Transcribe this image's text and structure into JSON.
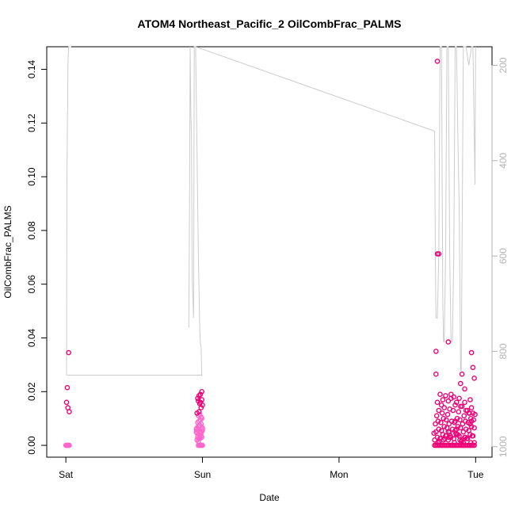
{
  "chart_data": {
    "type": "scatter",
    "title": "ATOM4 Northeast_Pacific_2 OilCombFrac_PALMS",
    "xlabel": "Date",
    "ylabel": "OilCombFrac_PALMS",
    "x_ticks": [
      {
        "day": 0,
        "label": "Sat"
      },
      {
        "day": 1,
        "label": "Sun"
      },
      {
        "day": 2,
        "label": "Mon"
      },
      {
        "day": 3,
        "label": "Tue"
      }
    ],
    "y_ticks": [
      0.0,
      0.02,
      0.04,
      0.06,
      0.08,
      0.1,
      0.12,
      0.14
    ],
    "y_tick_labels": [
      "0.00",
      "0.02",
      "0.04",
      "0.06",
      "0.08",
      "0.10",
      "0.12",
      "0.14"
    ],
    "ylim": [
      -0.0044,
      0.1484
    ],
    "xlim_days": [
      -0.14,
      3.12
    ],
    "right_axis": {
      "label": "",
      "ticks": [
        200,
        400,
        600,
        800,
        1000
      ],
      "tick_labels": [
        "200",
        "400",
        "600",
        "800",
        "1000"
      ],
      "lim_top_to_bottom": [
        161,
        1022
      ],
      "color": "#b3b3b3"
    },
    "colors": {
      "points": "#ee0077",
      "points_light": "#ff66cc",
      "altitude_line": "#cccccc",
      "axis": "#000000"
    },
    "series": [
      {
        "kind": "points",
        "x_day": [
          0.0,
          0.005,
          0.01,
          0.015,
          0.02,
          0.025,
          0.01,
          0.005,
          0.015,
          0.025,
          0.02,
          0.97,
          0.975,
          0.98,
          0.985,
          0.99,
          0.995,
          1.0,
          0.96,
          0.965,
          0.97,
          0.975,
          0.98,
          0.985,
          0.99,
          0.995,
          1.0,
          0.955,
          0.96,
          0.97,
          0.98,
          0.99,
          1.0,
          0.965,
          0.975,
          0.985,
          0.995,
          0.97,
          0.98,
          0.99,
          0.96,
          0.975,
          0.99,
          1.0,
          0.985,
          0.97,
          0.98,
          0.995,
          0.965,
          0.975,
          0.985,
          0.995,
          0.96,
          0.97,
          0.98,
          0.99,
          1.0,
          0.955,
          0.965,
          0.975,
          2.7,
          2.71,
          2.72,
          2.73,
          2.74,
          2.75,
          2.76,
          2.77,
          2.78,
          2.79,
          2.8,
          2.81,
          2.82,
          2.83,
          2.84,
          2.85,
          2.86,
          2.87,
          2.88,
          2.89,
          2.9,
          2.91,
          2.92,
          2.93,
          2.94,
          2.95,
          2.96,
          2.97,
          2.98,
          2.99,
          2.7,
          2.72,
          2.74,
          2.76,
          2.78,
          2.8,
          2.82,
          2.84,
          2.86,
          2.88,
          2.9,
          2.92,
          2.94,
          2.96,
          2.98,
          2.71,
          2.73,
          2.75,
          2.77,
          2.79,
          2.81,
          2.83,
          2.85,
          2.87,
          2.89,
          2.91,
          2.93,
          2.95,
          2.97,
          2.99,
          2.705,
          2.725,
          2.745,
          2.765,
          2.785,
          2.805,
          2.825,
          2.845,
          2.865,
          2.885,
          2.905,
          2.925,
          2.945,
          2.965,
          2.985,
          2.715,
          2.755,
          2.795,
          2.835,
          2.875,
          2.915,
          2.955,
          2.995,
          2.73,
          2.77,
          2.81,
          2.85,
          2.89,
          2.93,
          2.97,
          2.72,
          2.76,
          2.8,
          2.84,
          2.88,
          2.92,
          2.96,
          2.74,
          2.78,
          2.82,
          2.86,
          2.9,
          2.94,
          2.98,
          2.695,
          2.735,
          2.775,
          2.815,
          2.855,
          2.895,
          2.935,
          2.975,
          2.725,
          2.765,
          2.805,
          2.845,
          2.885,
          2.925,
          2.965,
          2.71,
          2.8,
          2.9,
          2.89,
          2.97,
          2.98,
          2.99,
          2.92,
          2.71,
          2.72,
          2.73,
          2.72,
          2.75,
          2.8,
          2.85,
          2.91,
          2.96,
          2.99,
          2.82,
          2.86,
          2.95,
          2.97,
          2.87
        ],
        "y": [
          0.0,
          0.0,
          0.0,
          0.0,
          0.0,
          0.0,
          0.0215,
          0.016,
          0.014,
          0.0125,
          0.0345,
          0.0,
          0.0,
          0.0,
          0.0,
          0.0,
          0.0,
          0.0,
          0.002,
          0.003,
          0.0025,
          0.004,
          0.0035,
          0.005,
          0.0045,
          0.003,
          0.0055,
          0.006,
          0.0065,
          0.007,
          0.0075,
          0.008,
          0.006,
          0.0085,
          0.009,
          0.0095,
          0.01,
          0.011,
          0.0115,
          0.0105,
          0.012,
          0.0125,
          0.014,
          0.015,
          0.016,
          0.0165,
          0.0155,
          0.017,
          0.0175,
          0.0185,
          0.019,
          0.02,
          0.0045,
          0.0015,
          0.0025,
          0.0035,
          0.0065,
          0.005,
          0.0055,
          0.0075,
          0.0,
          0.0,
          0.0,
          0.0,
          0.0,
          0.0,
          0.0,
          0.0,
          0.0,
          0.0,
          0.0,
          0.0,
          0.0,
          0.0,
          0.0,
          0.0,
          0.0,
          0.0,
          0.0,
          0.0,
          0.0,
          0.0,
          0.0,
          0.0,
          0.0,
          0.0,
          0.0,
          0.0,
          0.0,
          0.0,
          0.002,
          0.003,
          0.0025,
          0.004,
          0.0035,
          0.002,
          0.003,
          0.0025,
          0.004,
          0.0035,
          0.002,
          0.003,
          0.0025,
          0.004,
          0.0035,
          0.005,
          0.006,
          0.0055,
          0.007,
          0.0065,
          0.005,
          0.006,
          0.0055,
          0.007,
          0.0065,
          0.005,
          0.006,
          0.0055,
          0.007,
          0.0065,
          0.008,
          0.009,
          0.0085,
          0.01,
          0.0095,
          0.008,
          0.009,
          0.0085,
          0.01,
          0.0095,
          0.008,
          0.009,
          0.0085,
          0.01,
          0.0095,
          0.011,
          0.012,
          0.0115,
          0.013,
          0.0125,
          0.011,
          0.012,
          0.0115,
          0.013,
          0.014,
          0.0135,
          0.015,
          0.0145,
          0.013,
          0.014,
          0.016,
          0.017,
          0.0165,
          0.018,
          0.0175,
          0.016,
          0.017,
          0.019,
          0.0185,
          0.0175,
          0.016,
          0.0145,
          0.013,
          0.012,
          0.0045,
          0.0015,
          0.0025,
          0.0035,
          0.0045,
          0.0015,
          0.0025,
          0.0035,
          0.001,
          0.002,
          0.003,
          0.001,
          0.002,
          0.003,
          0.001,
          0.035,
          0.0385,
          0.0265,
          0.023,
          0.0345,
          0.029,
          0.025,
          0.021,
          0.0265,
          0.0713,
          0.0713,
          0.143,
          0.015,
          0.005,
          0.009,
          0.001,
          0.008,
          0.001,
          0.019,
          0.006,
          0.012,
          0.009,
          0.004
        ]
      },
      {
        "kind": "line",
        "name": "",
        "axis": "right",
        "segments": [
          [
            [
              0.005,
              850
            ],
            [
              0.006,
              660
            ],
            [
              0.008,
              440
            ],
            [
              0.012,
              300
            ],
            [
              0.013,
              290
            ],
            [
              0.015,
              200
            ],
            [
              0.02,
              161
            ],
            [
              0.04,
              161
            ]
          ],
          [
            [
              0.005,
              850
            ],
            [
              1.0,
              850
            ]
          ],
          [
            [
              0.9,
              750
            ],
            [
              0.905,
              500
            ],
            [
              0.91,
              161
            ],
            [
              0.915,
              300
            ],
            [
              0.92,
              350
            ],
            [
              0.925,
              650
            ],
            [
              0.935,
              730
            ],
            [
              0.94,
              161
            ],
            [
              0.95,
              161
            ],
            [
              0.97,
              600
            ],
            [
              0.98,
              750
            ],
            [
              0.985,
              785
            ],
            [
              0.99,
              790
            ],
            [
              0.995,
              850
            ]
          ],
          [
            [
              0.95,
              161
            ],
            [
              2.7,
              338
            ]
          ],
          [
            [
              2.7,
              338
            ],
            [
              2.705,
              610
            ],
            [
              2.71,
              730
            ],
            [
              2.72,
              730
            ],
            [
              2.73,
              600
            ],
            [
              2.74,
              161
            ],
            [
              2.75,
              161
            ],
            [
              2.76,
              700
            ],
            [
              2.765,
              780
            ],
            [
              2.77,
              780
            ],
            [
              2.78,
              600
            ],
            [
              2.79,
              161
            ],
            [
              2.8,
              161
            ],
            [
              2.81,
              600
            ],
            [
              2.82,
              780
            ],
            [
              2.83,
              780
            ],
            [
              2.84,
              600
            ],
            [
              2.85,
              161
            ],
            [
              2.86,
              161
            ],
            [
              2.87,
              350
            ],
            [
              2.88,
              500
            ],
            [
              2.89,
              840
            ],
            [
              2.895,
              840
            ],
            [
              2.9,
              600
            ],
            [
              2.91,
              161
            ],
            [
              2.93,
              161
            ],
            [
              2.95,
              200
            ],
            [
              2.97,
              161
            ],
            [
              2.98,
              161
            ],
            [
              2.99,
              350
            ],
            [
              2.995,
              450
            ],
            [
              3.0,
              161
            ]
          ]
        ]
      }
    ]
  }
}
